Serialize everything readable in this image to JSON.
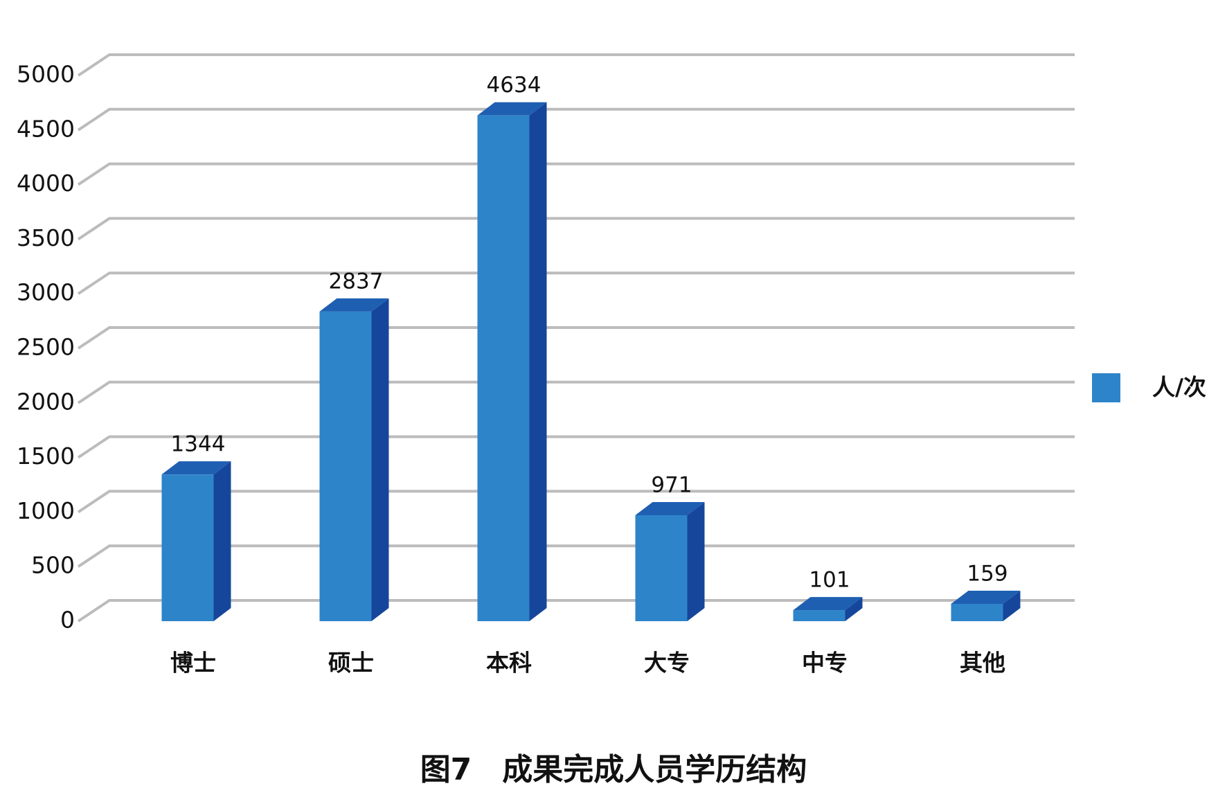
{
  "chart_data": {
    "type": "bar3d",
    "title": "图7　成果完成人员学历结构",
    "categories": [
      "博士",
      "硕士",
      "本科",
      "大专",
      "中专",
      "其他"
    ],
    "series": [
      {
        "name": "人/次",
        "color": "#2e84c9",
        "values": [
          1344,
          2837,
          4634,
          971,
          101,
          159
        ]
      }
    ],
    "ylim": [
      0,
      5000
    ],
    "yticks": [
      0,
      500,
      1000,
      1500,
      2000,
      2500,
      3000,
      3500,
      4000,
      4500,
      5000
    ],
    "grid": true,
    "legend": "right"
  }
}
